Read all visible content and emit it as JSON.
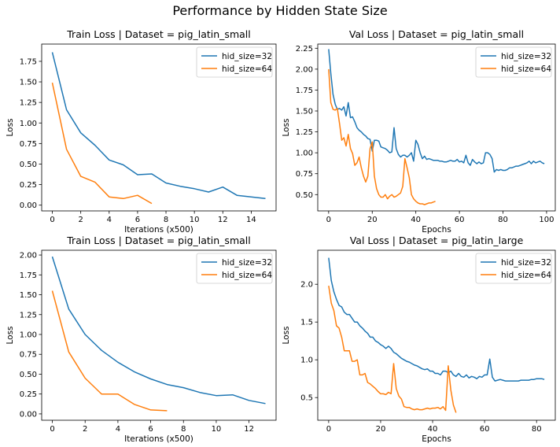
{
  "figure": {
    "title": "Performance by Hidden State Size"
  },
  "colors": {
    "hid_size_32": "#1f77b4",
    "hid_size_64": "#ff7f0e"
  },
  "chart_data": [
    {
      "type": "line",
      "title": "Train Loss | Dataset = pig_latin_small",
      "xlabel": "Iterations (x500)",
      "ylabel": "Loss",
      "xlim": [
        -0.75,
        15.75
      ],
      "ylim": [
        -0.07,
        1.96
      ],
      "xticks": [
        0,
        2,
        4,
        6,
        8,
        10,
        12,
        14
      ],
      "yticks": [
        0.0,
        0.25,
        0.5,
        0.75,
        1.0,
        1.25,
        1.5,
        1.75
      ],
      "xtick_labels": [
        "0",
        "2",
        "4",
        "6",
        "8",
        "10",
        "12",
        "14"
      ],
      "ytick_labels": [
        "0.00",
        "0.25",
        "0.50",
        "0.75",
        "1.00",
        "1.25",
        "1.50",
        "1.75"
      ],
      "legend_loc": "upper right",
      "series": [
        {
          "name": "hid_size=32",
          "color": "#1f77b4",
          "x": [
            0,
            1,
            2,
            3,
            4,
            5,
            6,
            7,
            8,
            9,
            10,
            11,
            12,
            13,
            14,
            15
          ],
          "y": [
            1.86,
            1.16,
            0.88,
            0.73,
            0.55,
            0.49,
            0.37,
            0.38,
            0.27,
            0.23,
            0.2,
            0.16,
            0.22,
            0.12,
            0.1,
            0.08
          ]
        },
        {
          "name": "hid_size=64",
          "color": "#ff7f0e",
          "x": [
            0,
            1,
            2,
            3,
            4,
            5,
            6,
            7
          ],
          "y": [
            1.49,
            0.68,
            0.35,
            0.28,
            0.1,
            0.08,
            0.12,
            0.02
          ]
        }
      ]
    },
    {
      "type": "line",
      "title": "Val Loss | Dataset = pig_latin_small",
      "xlabel": "Epochs",
      "ylabel": "Loss",
      "xlim": [
        -5,
        104
      ],
      "ylim": [
        0.305,
        2.3
      ],
      "xticks": [
        0,
        20,
        40,
        60,
        80,
        100
      ],
      "yticks": [
        0.5,
        0.75,
        1.0,
        1.25,
        1.5,
        1.75,
        2.0,
        2.25
      ],
      "xtick_labels": [
        "0",
        "20",
        "40",
        "60",
        "80",
        "100"
      ],
      "ytick_labels": [
        "0.50",
        "0.75",
        "1.00",
        "1.25",
        "1.50",
        "1.75",
        "2.00",
        "2.25"
      ],
      "legend_loc": "upper right",
      "series": [
        {
          "name": "hid_size=32",
          "color": "#1f77b4",
          "x": [
            0,
            1,
            2,
            3,
            4,
            5,
            6,
            7,
            8,
            9,
            10,
            11,
            12,
            13,
            14,
            15,
            16,
            17,
            18,
            19,
            20,
            21,
            22,
            23,
            24,
            25,
            26,
            27,
            28,
            29,
            30,
            31,
            32,
            33,
            34,
            35,
            36,
            37,
            38,
            39,
            40,
            41,
            42,
            43,
            44,
            45,
            46,
            47,
            48,
            49,
            50,
            51,
            52,
            53,
            54,
            55,
            56,
            57,
            58,
            59,
            60,
            61,
            62,
            63,
            64,
            65,
            66,
            67,
            68,
            69,
            70,
            71,
            72,
            73,
            74,
            75,
            76,
            77,
            78,
            79,
            80,
            81,
            82,
            83,
            84,
            85,
            86,
            87,
            88,
            89,
            90,
            91,
            92,
            93,
            94,
            95,
            96,
            97,
            98,
            99
          ],
          "y": [
            2.24,
            1.95,
            1.7,
            1.58,
            1.52,
            1.53,
            1.51,
            1.55,
            1.44,
            1.6,
            1.42,
            1.43,
            1.37,
            1.3,
            1.27,
            1.25,
            1.22,
            1.2,
            1.17,
            1.16,
            1.02,
            1.15,
            1.15,
            1.14,
            1.07,
            1.06,
            1.05,
            1.03,
            1.0,
            1.01,
            1.3,
            1.05,
            0.98,
            0.95,
            0.97,
            0.97,
            0.95,
            0.97,
            1.0,
            0.9,
            1.15,
            1.1,
            1.0,
            0.93,
            0.96,
            0.92,
            0.93,
            0.92,
            0.91,
            0.91,
            0.91,
            0.9,
            0.9,
            0.89,
            0.89,
            0.9,
            0.91,
            0.9,
            0.9,
            0.92,
            0.89,
            0.9,
            0.88,
            0.97,
            0.88,
            0.85,
            0.92,
            0.89,
            0.87,
            0.89,
            0.87,
            0.88,
            1.0,
            1.0,
            0.98,
            0.93,
            0.77,
            0.8,
            0.79,
            0.8,
            0.79,
            0.79,
            0.8,
            0.82,
            0.82,
            0.83,
            0.84,
            0.84,
            0.85,
            0.86,
            0.87,
            0.88,
            0.9,
            0.87,
            0.9,
            0.88,
            0.89,
            0.9,
            0.88,
            0.87
          ]
        },
        {
          "name": "hid_size=64",
          "color": "#ff7f0e",
          "x": [
            0,
            1,
            2,
            3,
            4,
            5,
            6,
            7,
            8,
            9,
            10,
            11,
            12,
            13,
            14,
            15,
            16,
            17,
            18,
            19,
            20,
            21,
            22,
            23,
            24,
            25,
            26,
            27,
            28,
            29,
            30,
            31,
            32,
            33,
            34,
            35,
            36,
            37,
            38,
            39,
            40,
            41,
            42,
            43,
            44,
            45,
            46,
            47,
            48,
            49
          ],
          "y": [
            2.0,
            1.6,
            1.52,
            1.51,
            1.53,
            1.35,
            1.15,
            1.18,
            1.08,
            1.22,
            1.05,
            0.99,
            0.85,
            0.88,
            0.95,
            0.82,
            0.72,
            0.65,
            0.72,
            1.05,
            1.13,
            0.72,
            0.57,
            0.5,
            0.47,
            0.47,
            0.5,
            0.45,
            0.48,
            0.5,
            0.47,
            0.48,
            0.5,
            0.52,
            0.6,
            0.93,
            0.82,
            0.7,
            0.5,
            0.45,
            0.42,
            0.4,
            0.39,
            0.39,
            0.38,
            0.39,
            0.4,
            0.4,
            0.41,
            0.42
          ]
        }
      ]
    },
    {
      "type": "line",
      "title": "Train Loss | Dataset = pig_latin_small",
      "xlabel": "Iterations (x500)",
      "ylabel": "Loss",
      "xlim": [
        -0.65,
        13.65
      ],
      "ylim": [
        -0.08,
        2.06
      ],
      "xticks": [
        0,
        2,
        4,
        6,
        8,
        10,
        12
      ],
      "yticks": [
        0.0,
        0.25,
        0.5,
        0.75,
        1.0,
        1.25,
        1.5,
        1.75,
        2.0
      ],
      "xtick_labels": [
        "0",
        "2",
        "4",
        "6",
        "8",
        "10",
        "12"
      ],
      "ytick_labels": [
        "0.00",
        "0.25",
        "0.50",
        "0.75",
        "1.00",
        "1.25",
        "1.50",
        "1.75",
        "2.00"
      ],
      "legend_loc": "upper right",
      "series": [
        {
          "name": "hid_size=32",
          "color": "#1f77b4",
          "x": [
            0,
            1,
            2,
            3,
            4,
            5,
            6,
            7,
            8,
            9,
            10,
            11,
            12,
            13
          ],
          "y": [
            1.98,
            1.32,
            1.0,
            0.8,
            0.65,
            0.53,
            0.44,
            0.37,
            0.33,
            0.27,
            0.23,
            0.24,
            0.17,
            0.13
          ]
        },
        {
          "name": "hid_size=64",
          "color": "#ff7f0e",
          "x": [
            0,
            1,
            2,
            3,
            4,
            5,
            6,
            7
          ],
          "y": [
            1.55,
            0.78,
            0.45,
            0.25,
            0.25,
            0.12,
            0.05,
            0.04
          ]
        }
      ]
    },
    {
      "type": "line",
      "title": "Val Loss | Dataset = pig_latin_large",
      "xlabel": "Epochs",
      "ylabel": "Loss",
      "xlim": [
        -4.2,
        87.2
      ],
      "ylim": [
        0.2,
        2.45
      ],
      "xticks": [
        0,
        20,
        40,
        60,
        80
      ],
      "yticks": [
        0.5,
        1.0,
        1.5,
        2.0
      ],
      "xtick_labels": [
        "0",
        "20",
        "40",
        "60",
        "80"
      ],
      "ytick_labels": [
        "0.5",
        "1.0",
        "1.5",
        "2.0"
      ],
      "legend_loc": "upper right",
      "series": [
        {
          "name": "hid_size=32",
          "color": "#1f77b4",
          "x": [
            0,
            1,
            2,
            3,
            4,
            5,
            6,
            7,
            8,
            9,
            10,
            11,
            12,
            13,
            14,
            15,
            16,
            17,
            18,
            19,
            20,
            21,
            22,
            23,
            24,
            25,
            26,
            27,
            28,
            29,
            30,
            31,
            32,
            33,
            34,
            35,
            36,
            37,
            38,
            39,
            40,
            41,
            42,
            43,
            44,
            45,
            46,
            47,
            48,
            49,
            50,
            51,
            52,
            53,
            54,
            55,
            56,
            57,
            58,
            59,
            60,
            61,
            62,
            63,
            64,
            65,
            66,
            67,
            68,
            69,
            70,
            71,
            72,
            73,
            74,
            75,
            76,
            77,
            78,
            79,
            80,
            81,
            82,
            83
          ],
          "y": [
            2.35,
            2.05,
            1.9,
            1.8,
            1.72,
            1.7,
            1.63,
            1.6,
            1.6,
            1.55,
            1.5,
            1.5,
            1.45,
            1.42,
            1.38,
            1.35,
            1.3,
            1.3,
            1.25,
            1.23,
            1.2,
            1.18,
            1.15,
            1.18,
            1.15,
            1.1,
            1.08,
            1.05,
            1.02,
            1.0,
            0.98,
            0.97,
            0.95,
            0.93,
            0.92,
            0.9,
            0.88,
            0.87,
            0.88,
            0.85,
            0.85,
            0.82,
            0.82,
            0.8,
            0.85,
            0.85,
            0.83,
            0.85,
            0.8,
            0.78,
            0.82,
            0.78,
            0.77,
            0.8,
            0.76,
            0.78,
            0.77,
            0.75,
            0.78,
            0.77,
            0.8,
            0.8,
            1.01,
            0.77,
            0.72,
            0.73,
            0.74,
            0.73,
            0.72,
            0.72,
            0.72,
            0.72,
            0.72,
            0.72,
            0.73,
            0.73,
            0.73,
            0.73,
            0.74,
            0.74,
            0.75,
            0.75,
            0.75,
            0.74
          ]
        },
        {
          "name": "hid_size=64",
          "color": "#ff7f0e",
          "x": [
            0,
            1,
            2,
            3,
            4,
            5,
            6,
            7,
            8,
            9,
            10,
            11,
            12,
            13,
            14,
            15,
            16,
            17,
            18,
            19,
            20,
            21,
            22,
            23,
            24,
            25,
            26,
            27,
            28,
            29,
            30,
            31,
            32,
            33,
            34,
            35,
            36,
            37,
            38,
            39,
            40,
            41,
            42,
            43,
            44,
            45,
            46,
            47,
            48,
            49
          ],
          "y": [
            1.98,
            1.75,
            1.65,
            1.45,
            1.42,
            1.3,
            1.12,
            1.12,
            1.12,
            0.98,
            0.98,
            1.0,
            0.8,
            0.8,
            0.82,
            0.7,
            0.68,
            0.65,
            0.62,
            0.58,
            0.55,
            0.55,
            0.54,
            0.57,
            0.55,
            0.95,
            0.62,
            0.52,
            0.48,
            0.38,
            0.37,
            0.37,
            0.35,
            0.34,
            0.35,
            0.34,
            0.34,
            0.35,
            0.36,
            0.35,
            0.36,
            0.36,
            0.37,
            0.35,
            0.38,
            0.33,
            0.92,
            0.6,
            0.4,
            0.3
          ]
        }
      ]
    }
  ]
}
